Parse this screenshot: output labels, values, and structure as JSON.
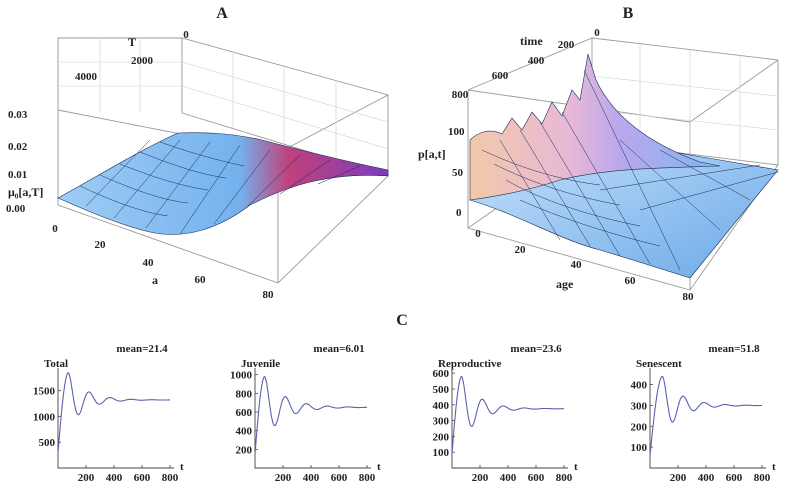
{
  "figure": {
    "panels": [
      {
        "letter": "A",
        "axes": {
          "t_label": "T",
          "a_label": "a",
          "z_label": "μ₀[a,T]",
          "t_ticks": [
            "0",
            "2000",
            "4000"
          ],
          "a_ticks": [
            "0",
            "20",
            "40",
            "60",
            "80"
          ],
          "z_ticks": [
            "0.00",
            "0.01",
            "0.02",
            "0.03"
          ]
        }
      },
      {
        "letter": "B",
        "axes": {
          "t_label": "time",
          "a_label": "age",
          "z_label": "p[a,t]",
          "t_ticks": [
            "0",
            "200",
            "400",
            "600",
            "800"
          ],
          "a_ticks": [
            "0",
            "20",
            "40",
            "60",
            "80"
          ],
          "z_ticks": [
            "0",
            "50",
            "100"
          ]
        }
      },
      {
        "letter": "C"
      }
    ]
  },
  "chart_data": [
    {
      "type": "surface",
      "panel": "A",
      "x_label": "a",
      "y_label": "T",
      "z_label": "μ₀[a,T]",
      "xlim": [
        0,
        80
      ],
      "ylim": [
        0,
        5000
      ],
      "zlim": [
        0,
        0.03
      ],
      "note": "mortality surface: low for most ages, rising toward a≈80 near T=0"
    },
    {
      "type": "surface",
      "panel": "B",
      "x_label": "age",
      "y_label": "time",
      "z_label": "p[a,t]",
      "xlim": [
        0,
        80
      ],
      "ylim": [
        0,
        800
      ],
      "zlim": [
        0,
        130
      ],
      "note": "population density decaying with age, damped oscillation over time, peak near age 0 at early time"
    },
    {
      "type": "line",
      "panel": "C",
      "title": "mean=21.4",
      "series_label": "Total",
      "xlabel": "t",
      "xlim": [
        0,
        800
      ],
      "ylim": [
        0,
        1900
      ],
      "x_ticks": [
        200,
        400,
        600,
        800
      ],
      "y_ticks": [
        500,
        1000,
        1500
      ],
      "start": 300,
      "peak": 1850,
      "t_peak": 75,
      "equilibrium": 1320,
      "period": 150,
      "decay": 120
    },
    {
      "type": "line",
      "panel": "C",
      "title": "mean=6.01",
      "series_label": "Juvenile",
      "xlabel": "t",
      "xlim": [
        0,
        800
      ],
      "ylim": [
        0,
        1050
      ],
      "x_ticks": [
        200,
        400,
        600,
        800
      ],
      "y_ticks": [
        200,
        400,
        600,
        800,
        1000
      ],
      "start": 150,
      "peak": 980,
      "t_peak": 70,
      "equilibrium": 650,
      "period": 150,
      "decay": 140
    },
    {
      "type": "line",
      "panel": "C",
      "title": "mean=23.6",
      "series_label": "Reproductive",
      "xlabel": "t",
      "xlim": [
        0,
        800
      ],
      "ylim": [
        0,
        620
      ],
      "x_ticks": [
        200,
        400,
        600,
        800
      ],
      "y_ticks": [
        100,
        200,
        300,
        400,
        500,
        600
      ],
      "start": 90,
      "peak": 580,
      "t_peak": 70,
      "equilibrium": 375,
      "period": 150,
      "decay": 120
    },
    {
      "type": "line",
      "panel": "C",
      "title": "mean=51.8",
      "series_label": "Senescent",
      "xlabel": "t",
      "xlim": [
        0,
        800
      ],
      "ylim": [
        0,
        470
      ],
      "x_ticks": [
        200,
        400,
        600,
        800
      ],
      "y_ticks": [
        100,
        200,
        300,
        400
      ],
      "start": 60,
      "peak": 440,
      "t_peak": 90,
      "equilibrium": 300,
      "period": 150,
      "decay": 130
    }
  ]
}
